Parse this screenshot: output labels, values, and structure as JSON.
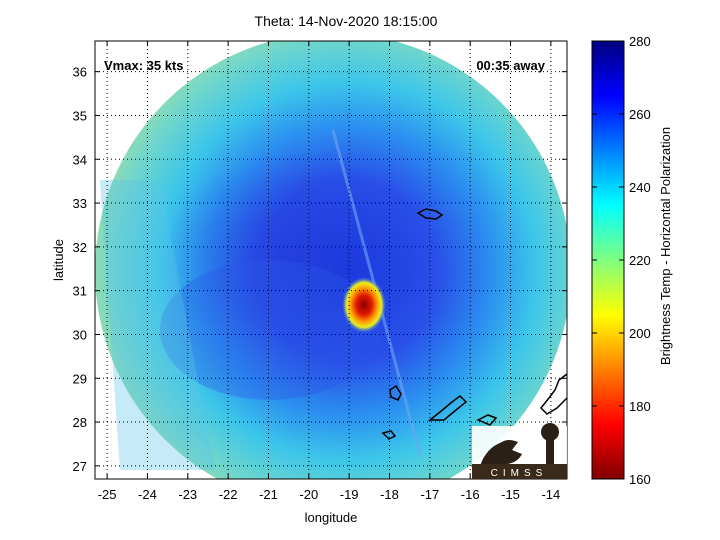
{
  "chart_data": {
    "type": "heatmap",
    "title": "Theta: 14-Nov-2020 18:15:00",
    "xlabel": "longitude",
    "ylabel": "latitude",
    "xlim": [
      -25.3,
      -13.6
    ],
    "ylim": [
      26.7,
      36.7
    ],
    "x_ticks": [
      -25,
      -24,
      -23,
      -22,
      -21,
      -20,
      -19,
      -18,
      -17,
      -16,
      -15,
      -14
    ],
    "y_ticks": [
      27,
      28,
      29,
      30,
      31,
      32,
      33,
      34,
      35,
      36
    ],
    "grid": true,
    "grid_style": "dotted",
    "annotations": [
      {
        "text": "Vmax: 35 kts",
        "position": "top-left"
      },
      {
        "text": "00:35 away",
        "position": "top-right"
      }
    ],
    "colorbar": {
      "label": "Brightness Temp - Horizontal Polarization",
      "range": [
        160,
        280
      ],
      "ticks": [
        160,
        180,
        200,
        220,
        240,
        260,
        280
      ],
      "colormap": "jet"
    },
    "features": [
      {
        "name": "storm-center",
        "lon": -18.6,
        "lat": 30.7,
        "value": 170
      },
      {
        "name": "swath-center",
        "lon": -19.0,
        "lat": 31.7
      }
    ],
    "logo_text": "CIMSS"
  }
}
